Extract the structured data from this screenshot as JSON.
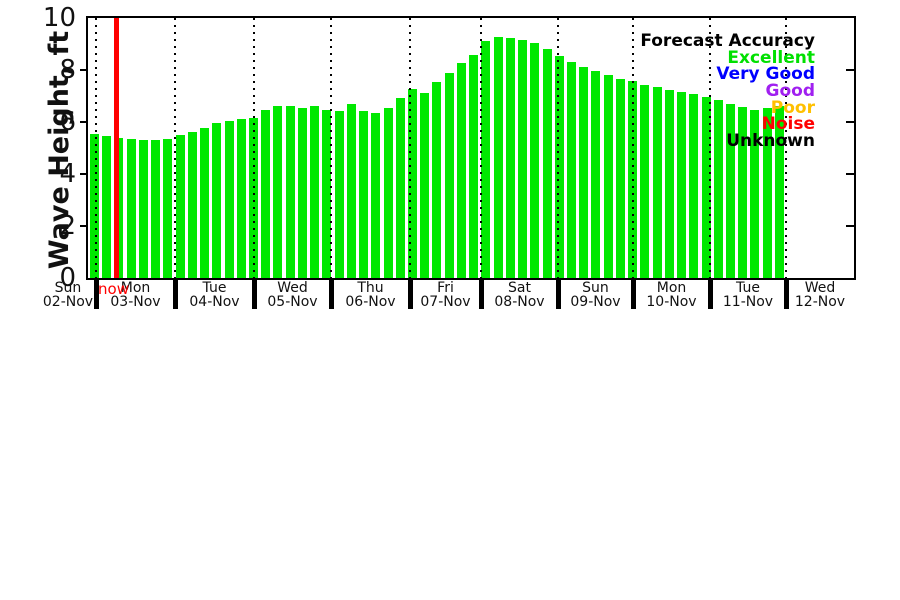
{
  "chart_data": {
    "type": "bar",
    "title": "",
    "ylabel": "Wave Height, ft",
    "xlabel": "",
    "ylim": [
      0,
      10
    ],
    "ytick_labels": [
      "0",
      "2",
      "4",
      "6",
      "8",
      "10"
    ],
    "grid": "vertical dotted black lines at each day boundary",
    "bar_color": "#00e800",
    "background_color": "#ffffff",
    "now_marker": {
      "label": "now",
      "color": "#ff0000"
    },
    "legend_position": "upper right inside plot",
    "legend_title": "Forecast Accuracy",
    "legend_entries": [
      {
        "label": "Excellent",
        "color": "#00e000"
      },
      {
        "label": "Very Good",
        "color": "#0000ff"
      },
      {
        "label": "Good",
        "color": "#a020f0"
      },
      {
        "label": "Poor",
        "color": "#ffc000"
      },
      {
        "label": "Noise",
        "color": "#ff0000"
      },
      {
        "label": "Unknown",
        "color": "#000000"
      }
    ],
    "x_days": [
      {
        "name": "Sun",
        "date": "02-Nov"
      },
      {
        "name": "Mon",
        "date": "03-Nov"
      },
      {
        "name": "Tue",
        "date": "04-Nov"
      },
      {
        "name": "Wed",
        "date": "05-Nov"
      },
      {
        "name": "Thu",
        "date": "06-Nov"
      },
      {
        "name": "Fri",
        "date": "07-Nov"
      },
      {
        "name": "Sat",
        "date": "08-Nov"
      },
      {
        "name": "Sun",
        "date": "09-Nov"
      },
      {
        "name": "Mon",
        "date": "10-Nov"
      },
      {
        "name": "Tue",
        "date": "11-Nov"
      },
      {
        "name": "Wed",
        "date": "12-Nov"
      }
    ],
    "values_ft": [
      5.53,
      5.45,
      5.4,
      5.33,
      5.32,
      5.32,
      5.35,
      5.49,
      5.6,
      5.77,
      5.97,
      6.05,
      6.12,
      6.16,
      6.46,
      6.62,
      6.6,
      6.52,
      6.63,
      6.48,
      6.43,
      6.68,
      6.41,
      6.36,
      6.55,
      6.92,
      7.25,
      7.12,
      7.55,
      7.9,
      8.25,
      8.58,
      9.12,
      9.25,
      9.22,
      9.15,
      9.02,
      8.8,
      8.55,
      8.32,
      8.13,
      7.96,
      7.81,
      7.66,
      7.56,
      7.41,
      7.33,
      7.23,
      7.14,
      7.06,
      6.97,
      6.85,
      6.7,
      6.58,
      6.48,
      6.55,
      6.62
    ]
  }
}
